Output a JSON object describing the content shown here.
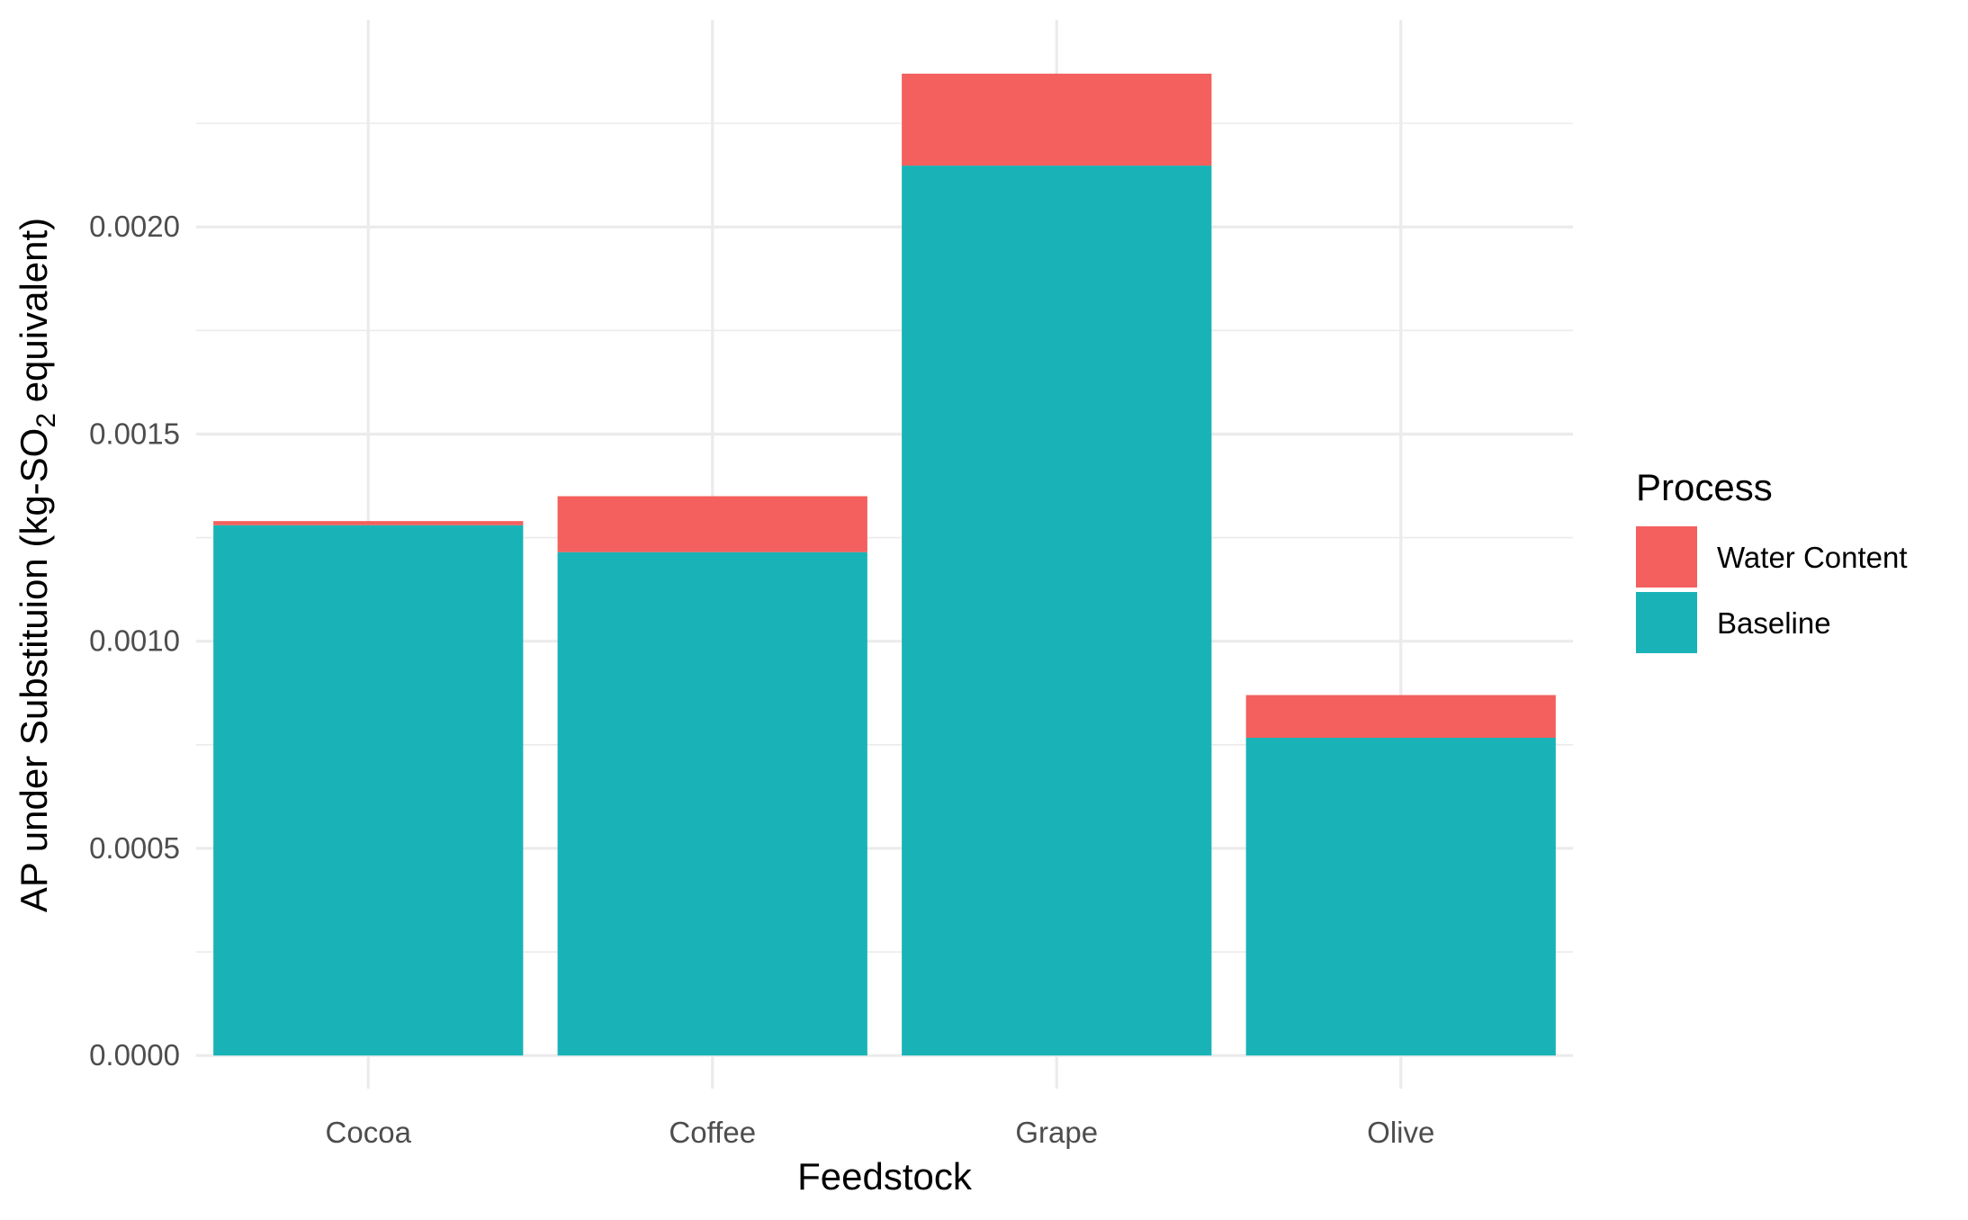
{
  "chart_data": {
    "type": "bar",
    "stacked": true,
    "categories": [
      "Cocoa",
      "Coffee",
      "Grape",
      "Olive"
    ],
    "series": [
      {
        "name": "Baseline",
        "color": "#19B3B7",
        "values": [
          0.00128,
          0.001215,
          0.002148,
          0.000767
        ]
      },
      {
        "name": "Water Content",
        "color": "#F3605D",
        "values": [
          1e-05,
          0.000135,
          0.000222,
          0.000103
        ]
      }
    ],
    "xlabel": "Feedstock",
    "ylabel": {
      "prefix": "AP under Substituion (kg-SO",
      "subscript": "2",
      "suffix": " equivalent)"
    },
    "ylim": [
      -8e-05,
      0.0025
    ],
    "yticks": [
      0,
      0.0005,
      0.001,
      0.0015,
      0.002
    ],
    "ytick_labels": [
      "0.0000",
      "0.0005",
      "0.0010",
      "0.0015",
      "0.0020"
    ],
    "legend": {
      "title": "Process",
      "items": [
        "Water Content",
        "Baseline"
      ],
      "position": "right"
    },
    "grid": true
  }
}
